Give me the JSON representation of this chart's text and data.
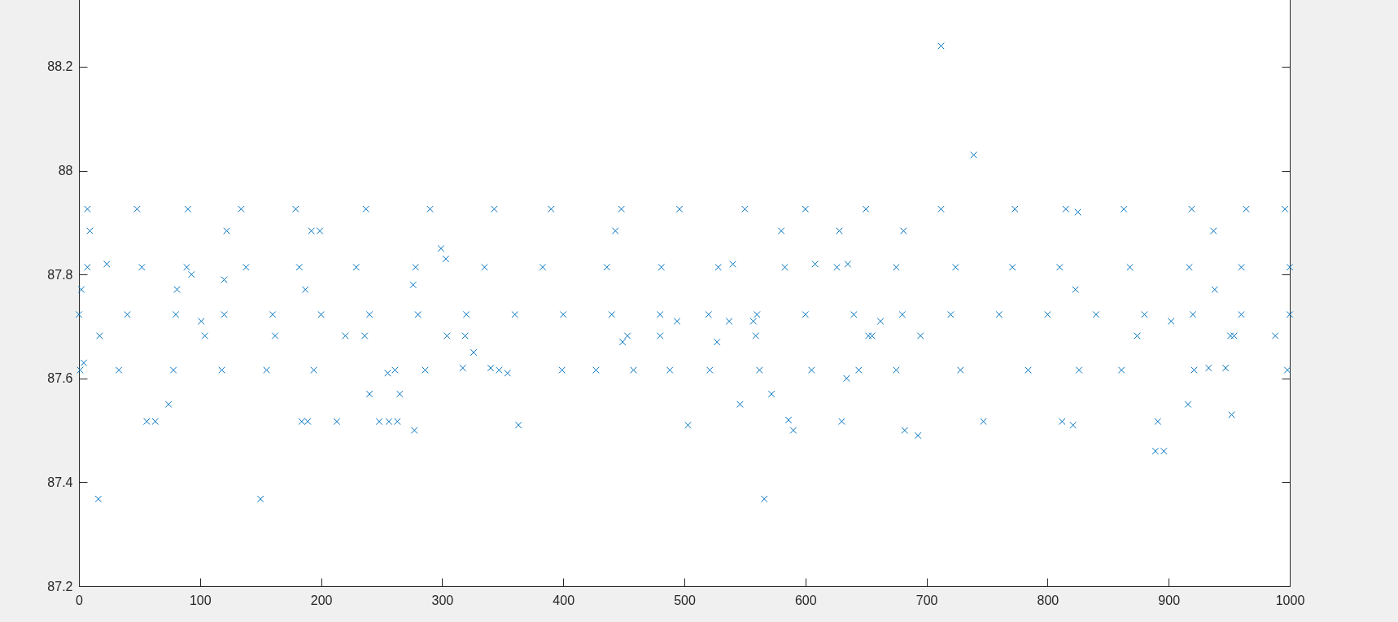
{
  "chart_data": {
    "type": "scatter",
    "color": "#0072bd",
    "marker": "cross",
    "grid": false,
    "xlim": [
      0,
      1000
    ],
    "ylim": [
      87.2,
      88.33
    ],
    "xticks": [
      0,
      100,
      200,
      300,
      400,
      500,
      600,
      700,
      800,
      900,
      1000
    ],
    "yticks": [
      87.2,
      87.4,
      87.6,
      87.8,
      88,
      88.2
    ],
    "x": [
      7,
      48,
      90,
      134,
      179,
      237,
      290,
      343,
      390,
      448,
      496,
      550,
      600,
      650,
      712,
      773,
      815,
      863,
      919,
      964,
      996,
      7,
      52,
      89,
      138,
      182,
      229,
      278,
      335,
      383,
      436,
      481,
      528,
      583,
      626,
      675,
      724,
      771,
      810,
      868,
      917,
      960,
      1000,
      0,
      40,
      80,
      120,
      160,
      200,
      240,
      280,
      320,
      360,
      400,
      440,
      480,
      520,
      560,
      600,
      640,
      680,
      720,
      760,
      800,
      840,
      880,
      920,
      960,
      1000,
      1,
      33,
      78,
      118,
      155,
      194,
      261,
      286,
      347,
      399,
      427,
      458,
      488,
      521,
      562,
      605,
      644,
      675,
      728,
      784,
      826,
      861,
      921,
      998,
      2,
      4,
      9,
      16,
      17,
      23,
      56,
      63,
      74,
      81,
      93,
      101,
      104,
      120,
      122,
      150,
      162,
      184,
      187,
      189,
      192,
      199,
      213,
      220,
      236,
      240,
      248,
      255,
      256,
      263,
      265,
      276,
      277,
      299,
      303,
      304,
      317,
      319,
      326,
      340,
      354,
      363,
      443,
      449,
      453,
      480,
      494,
      503,
      527,
      537,
      540,
      546,
      557,
      559,
      566,
      572,
      580,
      586,
      590,
      608,
      628,
      630,
      634,
      635,
      652,
      655,
      662,
      681,
      682,
      693,
      695,
      712,
      739,
      747,
      812,
      821,
      823,
      825,
      874,
      889,
      891,
      896,
      902,
      916,
      933,
      937,
      938,
      947,
      951,
      952,
      954,
      988
    ],
    "values": [
      87.926,
      87.926,
      87.926,
      87.926,
      87.926,
      87.926,
      87.926,
      87.926,
      87.926,
      87.926,
      87.926,
      87.926,
      87.926,
      87.926,
      87.926,
      87.926,
      87.926,
      87.926,
      87.926,
      87.926,
      87.926,
      87.814,
      87.814,
      87.814,
      87.814,
      87.814,
      87.814,
      87.814,
      87.814,
      87.814,
      87.814,
      87.814,
      87.814,
      87.814,
      87.814,
      87.814,
      87.814,
      87.814,
      87.814,
      87.814,
      87.814,
      87.814,
      87.814,
      87.723,
      87.723,
      87.723,
      87.723,
      87.723,
      87.723,
      87.723,
      87.723,
      87.723,
      87.723,
      87.723,
      87.723,
      87.723,
      87.723,
      87.723,
      87.723,
      87.723,
      87.723,
      87.723,
      87.723,
      87.723,
      87.723,
      87.723,
      87.723,
      87.723,
      87.723,
      87.616,
      87.616,
      87.616,
      87.616,
      87.616,
      87.616,
      87.616,
      87.616,
      87.616,
      87.616,
      87.616,
      87.616,
      87.616,
      87.616,
      87.616,
      87.616,
      87.616,
      87.616,
      87.616,
      87.616,
      87.616,
      87.616,
      87.616,
      87.616,
      87.771,
      87.63,
      87.884,
      87.368,
      87.682,
      87.82,
      87.517,
      87.517,
      87.55,
      87.771,
      87.8,
      87.71,
      87.682,
      87.79,
      87.884,
      87.368,
      87.682,
      87.517,
      87.771,
      87.517,
      87.884,
      87.884,
      87.517,
      87.682,
      87.682,
      87.57,
      87.517,
      87.61,
      87.517,
      87.517,
      87.57,
      87.78,
      87.5,
      87.85,
      87.83,
      87.682,
      87.62,
      87.682,
      87.65,
      87.62,
      87.61,
      87.51,
      87.884,
      87.67,
      87.682,
      87.682,
      87.71,
      87.51,
      87.67,
      87.71,
      87.82,
      87.55,
      87.71,
      87.682,
      87.368,
      87.57,
      87.884,
      87.52,
      87.5,
      87.82,
      87.884,
      87.517,
      87.6,
      87.82,
      87.682,
      87.682,
      87.71,
      87.884,
      87.5,
      87.49,
      87.682,
      88.24,
      88.03,
      87.517,
      87.517,
      87.51,
      87.771,
      87.92,
      87.682,
      87.46,
      87.517,
      87.46,
      87.71,
      87.55,
      87.62,
      87.884,
      87.771,
      87.62,
      87.682,
      87.53,
      87.682,
      87.682
    ]
  }
}
